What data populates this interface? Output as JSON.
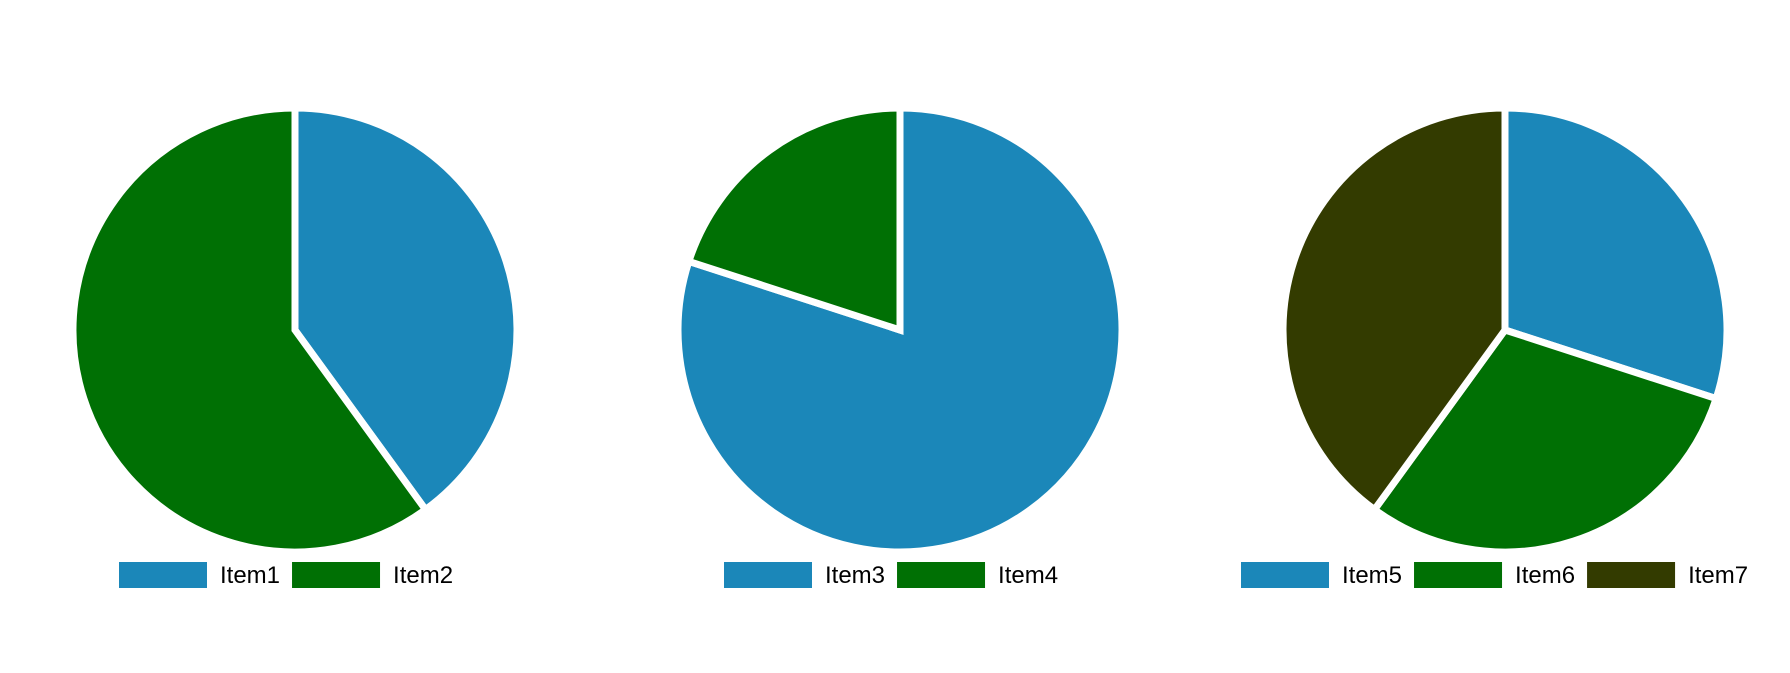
{
  "chart_data": [
    {
      "type": "pie",
      "slices": [
        {
          "label": "Item1",
          "value": 40,
          "color": "#1b87b9"
        },
        {
          "label": "Item2",
          "value": 60,
          "color": "#007004"
        }
      ],
      "legend": "bottom"
    },
    {
      "type": "pie",
      "slices": [
        {
          "label": "Item3",
          "value": 80,
          "color": "#1b87b9"
        },
        {
          "label": "Item4",
          "value": 20,
          "color": "#007004"
        }
      ],
      "legend": "bottom"
    },
    {
      "type": "pie",
      "slices": [
        {
          "label": "Item5",
          "value": 30,
          "color": "#1b87b9"
        },
        {
          "label": "Item6",
          "value": 30,
          "color": "#007004"
        },
        {
          "label": "Item7",
          "value": 40,
          "color": "#333b00"
        }
      ],
      "legend": "bottom"
    }
  ]
}
